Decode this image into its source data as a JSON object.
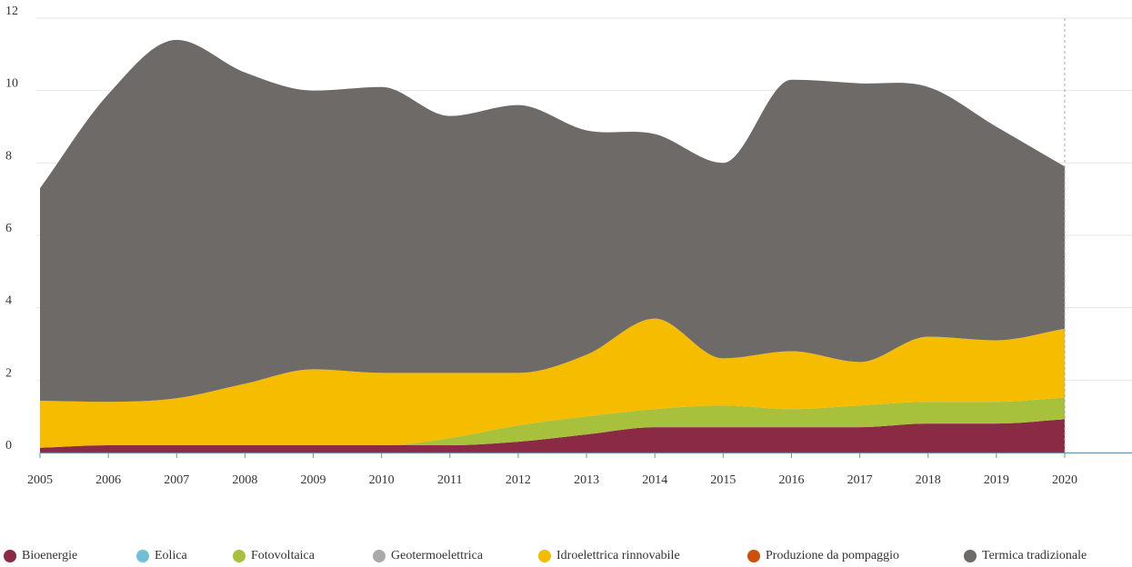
{
  "chart_data": {
    "type": "area",
    "stacked": true,
    "title": "",
    "xlabel": "",
    "ylabel": "",
    "x": [
      2005,
      2006,
      2007,
      2008,
      2009,
      2010,
      2011,
      2012,
      2013,
      2014,
      2015,
      2016,
      2017,
      2018,
      2019,
      2020
    ],
    "ylim": [
      0,
      12
    ],
    "yticks": [
      0,
      2,
      4,
      6,
      8,
      10,
      12
    ],
    "grid": "horizontal",
    "legend_position": "bottom",
    "series": [
      {
        "name": "Bioenergie",
        "color": "#8b2a45",
        "values": [
          0.13,
          0.2,
          0.2,
          0.2,
          0.2,
          0.2,
          0.2,
          0.3,
          0.5,
          0.7,
          0.7,
          0.7,
          0.7,
          0.8,
          0.8,
          0.92
        ]
      },
      {
        "name": "Eolica",
        "color": "#71bfd4",
        "values": [
          0.0,
          0.0,
          0.0,
          0.0,
          0.0,
          0.0,
          0.0,
          0.0,
          0.0,
          0.0,
          0.0,
          0.0,
          0.0,
          0.0,
          0.0,
          0.0
        ]
      },
      {
        "name": "Fotovoltaica",
        "color": "#a8c13c",
        "values": [
          0.0,
          0.0,
          0.0,
          0.0,
          0.0,
          0.0,
          0.2,
          0.45,
          0.5,
          0.5,
          0.6,
          0.5,
          0.6,
          0.6,
          0.6,
          0.6
        ]
      },
      {
        "name": "Geotermoelettrica",
        "color": "#aaaaaa",
        "values": [
          0.0,
          0.0,
          0.0,
          0.0,
          0.0,
          0.0,
          0.0,
          0.0,
          0.0,
          0.0,
          0.0,
          0.0,
          0.0,
          0.0,
          0.0,
          0.0
        ]
      },
      {
        "name": "Idroelettrica rinnovabile",
        "color": "#f5bc00",
        "values": [
          1.3,
          1.2,
          1.3,
          1.7,
          2.1,
          2.0,
          1.8,
          1.45,
          1.7,
          2.5,
          1.3,
          1.6,
          1.2,
          1.8,
          1.7,
          1.9
        ]
      },
      {
        "name": "Produzione da pompaggio",
        "color": "#cc4f0c",
        "values": [
          0.0,
          0.0,
          0.0,
          0.0,
          0.0,
          0.0,
          0.0,
          0.0,
          0.0,
          0.0,
          0.0,
          0.0,
          0.0,
          0.0,
          0.0,
          0.0
        ]
      },
      {
        "name": "Termica tradizionale",
        "color": "#6e6a68",
        "values": [
          5.87,
          8.5,
          9.9,
          8.6,
          7.7,
          7.9,
          7.1,
          7.4,
          6.2,
          5.1,
          5.4,
          7.5,
          7.7,
          6.9,
          5.9,
          4.48
        ]
      }
    ]
  }
}
